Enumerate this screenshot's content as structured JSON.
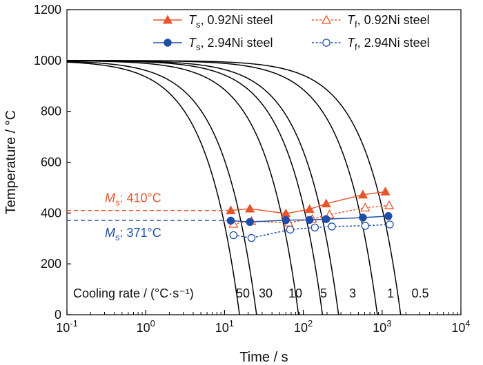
{
  "chart_data": {
    "type": "line",
    "xlabel": "Time / s",
    "ylabel": "Temperature / °C",
    "xscale": "log",
    "xlim": [
      0.1,
      10000
    ],
    "ylim": [
      0,
      1200
    ],
    "x_ticks": [
      {
        "value": 0.1,
        "base": "10",
        "exp": "-1"
      },
      {
        "value": 1,
        "base": "10",
        "exp": "0"
      },
      {
        "value": 10,
        "base": "10",
        "exp": "1"
      },
      {
        "value": 100,
        "base": "10",
        "exp": "2"
      },
      {
        "value": 1000,
        "base": "10",
        "exp": "3"
      },
      {
        "value": 10000,
        "base": "10",
        "exp": "4"
      }
    ],
    "y_ticks": [
      "0",
      "200",
      "400",
      "600",
      "800",
      "1000",
      "1200"
    ],
    "grid": false,
    "legend_position": "top-right",
    "colors": {
      "steel_092Ni": "#e8552a",
      "steel_294Ni": "#1f4ea8",
      "cooling_curves": "#000000"
    },
    "cooling_rate_label": "Cooling rate / (°C·s⁻¹)",
    "cooling_curves": [
      {
        "rate": "50",
        "x_at_0": 15.5
      },
      {
        "rate": "30",
        "x_at_0": 25.5
      },
      {
        "rate": "10",
        "x_at_0": 87
      },
      {
        "rate": "5",
        "x_at_0": 175
      },
      {
        "rate": "3",
        "x_at_0": 280
      },
      {
        "rate": "1",
        "x_at_0": 870
      },
      {
        "rate": "0.5",
        "x_at_0": 1720
      }
    ],
    "series": [
      {
        "name_main": "T",
        "name_sub": "s",
        "name_rest": ", 0.92Ni steel",
        "color": "#e8552a",
        "marker": "triangle",
        "filled": true,
        "line": "solid",
        "x": [
          12,
          21,
          60,
          120,
          195,
          570,
          1100
        ],
        "y": [
          410,
          417,
          398,
          415,
          437,
          472,
          484
        ]
      },
      {
        "name_main": "T",
        "name_sub": "f",
        "name_rest": ", 0.92Ni steel",
        "color": "#e8552a",
        "marker": "triangle",
        "filled": false,
        "line": "dotted",
        "x": [
          13,
          22,
          65,
          130,
          215,
          610,
          1230
        ],
        "y": [
          357,
          368,
          362,
          377,
          394,
          421,
          430
        ]
      },
      {
        "name_main": "T",
        "name_sub": "s",
        "name_rest": ", 2.94Ni steel",
        "color": "#1f4ea8",
        "marker": "circle",
        "filled": true,
        "line": "solid",
        "x": [
          12,
          21,
          60,
          120,
          195,
          570,
          1200
        ],
        "y": [
          370,
          365,
          372,
          373,
          376,
          382,
          388
        ]
      },
      {
        "name_main": "T",
        "name_sub": "f",
        "name_rest": ", 2.94Ni steel",
        "color": "#1f4ea8",
        "marker": "circle",
        "filled": false,
        "line": "dotted",
        "x": [
          13,
          22,
          68,
          140,
          230,
          610,
          1250
        ],
        "y": [
          313,
          302,
          335,
          343,
          347,
          350,
          355
        ]
      }
    ],
    "ms_lines": [
      {
        "prefix_main": "M",
        "prefix_sub": "s",
        "text": ": 410°C",
        "value": 410,
        "x_end": 11,
        "color": "#e8552a",
        "label_pos": "above"
      },
      {
        "prefix_main": "M",
        "prefix_sub": "s",
        "text": ": 371°C",
        "value": 371,
        "x_end": 11,
        "color": "#1f4ea8",
        "label_pos": "below"
      }
    ]
  }
}
